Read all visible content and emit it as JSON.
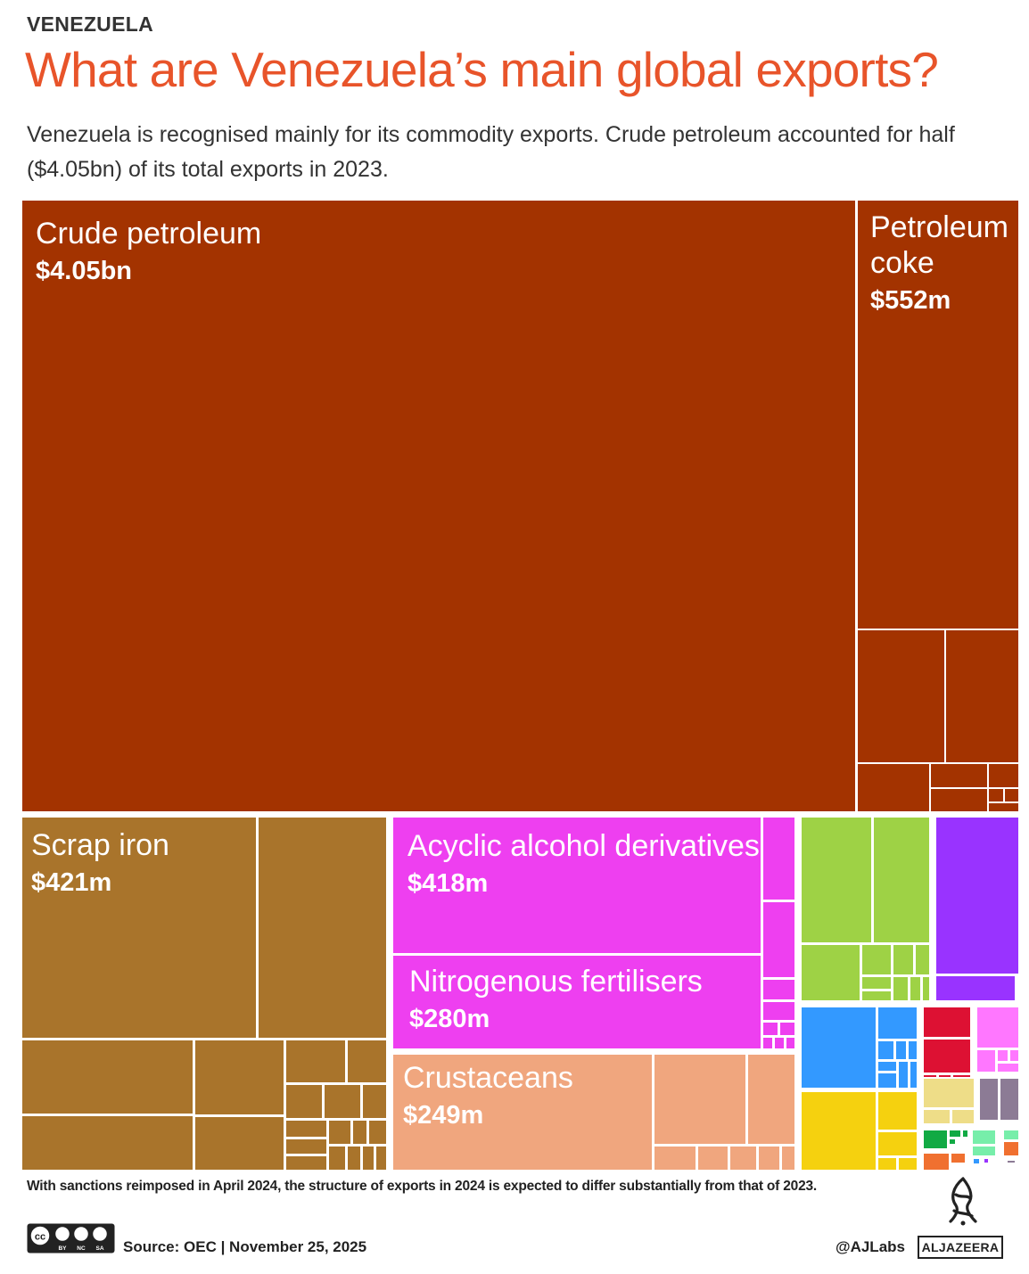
{
  "header": {
    "kicker": "VENEZUELA",
    "title": "What are Venezuela’s main global exports?",
    "subtitle": "Venezuela is recognised mainly for its commodity exports. Crude petroleum accounted for half ($4.05bn) of its total exports in 2023."
  },
  "footer": {
    "note": "With sanctions reimposed in April 2024, the structure of exports in 2024 is expected to differ substantially from that of 2023.",
    "source": "Source:  OEC | November 25, 2025",
    "handle": "@AJLabs",
    "brand": "ALJAZEERA",
    "license_labels": [
      "BY",
      "NC",
      "SA"
    ]
  },
  "colors": {
    "title": "#e8542a",
    "petroleum": "#a33300",
    "metals": "#a9742b",
    "chemicals": "#ee3ff0",
    "animal": "#f0a67e",
    "vegetable": "#9ed245",
    "purple": "#9933ff",
    "blue": "#3399ff",
    "yellow": "#f5d10f",
    "red": "#dd1133",
    "pink": "#ff77ff",
    "khaki": "#eedd88",
    "grey": "#8c7b95",
    "green": "#11aa44",
    "mint": "#77eeaa",
    "orange": "#f07030"
  },
  "chart_data": {
    "type": "treemap",
    "unit": "USD",
    "year": "2023",
    "items": [
      {
        "name": "Crude petroleum",
        "value_label": "$4.05bn",
        "value": 4050000000
      },
      {
        "name": "Petroleum coke",
        "value_label": "$552m",
        "value": 552000000
      },
      {
        "name": "Scrap iron",
        "value_label": "$421m",
        "value": 421000000
      },
      {
        "name": "Acyclic alcohol derivatives",
        "value_label": "$418m",
        "value": 418000000
      },
      {
        "name": "Nitrogenous fertilisers",
        "value_label": "$280m",
        "value": 280000000
      },
      {
        "name": "Crustaceans",
        "value_label": "$249m",
        "value": 249000000
      }
    ]
  }
}
